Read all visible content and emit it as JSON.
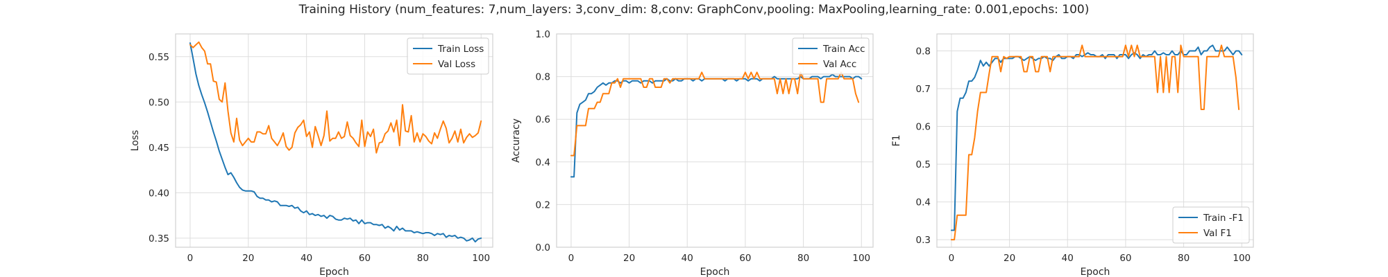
{
  "figure": {
    "suptitle": "Training History (num_features: 7,num_layers: 3,conv_dim: 8,conv: GraphConv,pooling: MaxPooling,learning_rate: 0.001,epochs: 100)"
  },
  "colors": {
    "train": "#1f77b4",
    "val": "#ff7f0e",
    "grid": "#dddddd",
    "axes_edge": "#d0d0d0",
    "background": "#ffffff"
  },
  "chart_data": [
    {
      "type": "line",
      "xlabel": "Epoch",
      "ylabel": "Loss",
      "xlim": [
        -5,
        104
      ],
      "ylim": [
        0.34,
        0.575
      ],
      "xticks": [
        0,
        20,
        40,
        60,
        80,
        100
      ],
      "yticks": [
        0.35,
        0.4,
        0.45,
        0.5,
        0.55
      ],
      "ytick_labels": [
        "0.35",
        "0.40",
        "0.45",
        "0.50",
        "0.55"
      ],
      "grid": true,
      "legend_position": "top-right",
      "series": [
        {
          "name": "Train Loss",
          "color": "#1f77b4",
          "x_start": 0,
          "values": [
            0.565,
            0.548,
            0.531,
            0.518,
            0.508,
            0.499,
            0.489,
            0.478,
            0.467,
            0.457,
            0.446,
            0.437,
            0.428,
            0.42,
            0.422,
            0.417,
            0.411,
            0.406,
            0.403,
            0.402,
            0.402,
            0.402,
            0.401,
            0.396,
            0.394,
            0.394,
            0.392,
            0.392,
            0.39,
            0.391,
            0.39,
            0.386,
            0.386,
            0.386,
            0.385,
            0.386,
            0.383,
            0.384,
            0.38,
            0.378,
            0.38,
            0.376,
            0.377,
            0.375,
            0.376,
            0.374,
            0.375,
            0.372,
            0.375,
            0.374,
            0.371,
            0.37,
            0.37,
            0.372,
            0.371,
            0.372,
            0.369,
            0.37,
            0.366,
            0.37,
            0.366,
            0.367,
            0.367,
            0.365,
            0.365,
            0.364,
            0.365,
            0.361,
            0.363,
            0.361,
            0.358,
            0.363,
            0.359,
            0.361,
            0.358,
            0.358,
            0.358,
            0.356,
            0.357,
            0.356,
            0.355,
            0.356,
            0.356,
            0.355,
            0.353,
            0.355,
            0.354,
            0.355,
            0.351,
            0.353,
            0.352,
            0.353,
            0.35,
            0.351,
            0.35,
            0.347,
            0.348,
            0.35,
            0.346,
            0.349,
            0.35
          ]
        },
        {
          "name": "Val Loss",
          "color": "#ff7f0e",
          "x_start": 0,
          "values": [
            0.563,
            0.56,
            0.563,
            0.566,
            0.56,
            0.556,
            0.542,
            0.542,
            0.523,
            0.522,
            0.503,
            0.5,
            0.521,
            0.49,
            0.466,
            0.456,
            0.482,
            0.458,
            0.452,
            0.456,
            0.46,
            0.456,
            0.456,
            0.467,
            0.467,
            0.465,
            0.465,
            0.474,
            0.46,
            0.456,
            0.452,
            0.458,
            0.466,
            0.451,
            0.447,
            0.45,
            0.466,
            0.472,
            0.475,
            0.48,
            0.462,
            0.467,
            0.45,
            0.473,
            0.463,
            0.452,
            0.463,
            0.49,
            0.457,
            0.46,
            0.46,
            0.467,
            0.46,
            0.462,
            0.478,
            0.463,
            0.46,
            0.455,
            0.451,
            0.48,
            0.451,
            0.467,
            0.462,
            0.47,
            0.444,
            0.455,
            0.456,
            0.465,
            0.468,
            0.477,
            0.467,
            0.48,
            0.452,
            0.497,
            0.468,
            0.467,
            0.485,
            0.456,
            0.466,
            0.456,
            0.465,
            0.462,
            0.457,
            0.454,
            0.466,
            0.46,
            0.47,
            0.479,
            0.471,
            0.455,
            0.46,
            0.468,
            0.456,
            0.47,
            0.455,
            0.461,
            0.465,
            0.461,
            0.463,
            0.466,
            0.479
          ]
        }
      ]
    },
    {
      "type": "line",
      "xlabel": "Epoch",
      "ylabel": "Accuracy",
      "xlim": [
        -5,
        104
      ],
      "ylim": [
        0.0,
        1.0
      ],
      "xticks": [
        0,
        20,
        40,
        60,
        80,
        100
      ],
      "yticks": [
        0.0,
        0.2,
        0.4,
        0.6,
        0.8,
        1.0
      ],
      "ytick_labels": [
        "0.0",
        "0.2",
        "0.4",
        "0.6",
        "0.8",
        "1.0"
      ],
      "grid": true,
      "legend_position": "top-right",
      "series": [
        {
          "name": "Train Acc",
          "color": "#1f77b4",
          "x_start": 0,
          "values": [
            0.33,
            0.33,
            0.63,
            0.67,
            0.68,
            0.69,
            0.72,
            0.72,
            0.73,
            0.75,
            0.76,
            0.77,
            0.76,
            0.77,
            0.77,
            0.78,
            0.78,
            0.77,
            0.78,
            0.78,
            0.77,
            0.78,
            0.78,
            0.78,
            0.77,
            0.78,
            0.78,
            0.78,
            0.77,
            0.78,
            0.78,
            0.78,
            0.78,
            0.79,
            0.78,
            0.78,
            0.79,
            0.78,
            0.78,
            0.79,
            0.79,
            0.79,
            0.78,
            0.79,
            0.79,
            0.78,
            0.79,
            0.79,
            0.79,
            0.79,
            0.79,
            0.79,
            0.79,
            0.78,
            0.79,
            0.79,
            0.79,
            0.78,
            0.79,
            0.79,
            0.79,
            0.78,
            0.79,
            0.79,
            0.79,
            0.78,
            0.79,
            0.79,
            0.79,
            0.79,
            0.8,
            0.79,
            0.79,
            0.79,
            0.79,
            0.79,
            0.79,
            0.79,
            0.79,
            0.8,
            0.79,
            0.79,
            0.79,
            0.8,
            0.8,
            0.8,
            0.79,
            0.8,
            0.8,
            0.8,
            0.81,
            0.8,
            0.8,
            0.8,
            0.8,
            0.8,
            0.8,
            0.79,
            0.8,
            0.8,
            0.79
          ]
        },
        {
          "name": "Val Acc",
          "color": "#ff7f0e",
          "x_start": 0,
          "values": [
            0.43,
            0.43,
            0.57,
            0.57,
            0.57,
            0.57,
            0.65,
            0.65,
            0.65,
            0.68,
            0.68,
            0.72,
            0.72,
            0.72,
            0.77,
            0.77,
            0.79,
            0.75,
            0.79,
            0.79,
            0.79,
            0.79,
            0.79,
            0.79,
            0.79,
            0.75,
            0.75,
            0.79,
            0.79,
            0.75,
            0.75,
            0.75,
            0.79,
            0.79,
            0.77,
            0.79,
            0.79,
            0.79,
            0.79,
            0.79,
            0.79,
            0.79,
            0.79,
            0.79,
            0.79,
            0.82,
            0.79,
            0.79,
            0.79,
            0.79,
            0.79,
            0.79,
            0.79,
            0.79,
            0.79,
            0.79,
            0.79,
            0.79,
            0.79,
            0.79,
            0.82,
            0.79,
            0.82,
            0.79,
            0.82,
            0.79,
            0.79,
            0.79,
            0.79,
            0.79,
            0.79,
            0.72,
            0.79,
            0.72,
            0.79,
            0.72,
            0.79,
            0.79,
            0.72,
            0.82,
            0.79,
            0.79,
            0.79,
            0.79,
            0.79,
            0.79,
            0.68,
            0.68,
            0.79,
            0.79,
            0.79,
            0.79,
            0.79,
            0.82,
            0.79,
            0.79,
            0.79,
            0.79,
            0.72,
            0.68
          ]
        }
      ]
    },
    {
      "type": "line",
      "xlabel": "Epoch",
      "ylabel": "F1",
      "xlim": [
        -5,
        104
      ],
      "ylim": [
        0.28,
        0.845
      ],
      "xticks": [
        0,
        20,
        40,
        60,
        80,
        100
      ],
      "yticks": [
        0.3,
        0.4,
        0.5,
        0.6,
        0.7,
        0.8
      ],
      "ytick_labels": [
        "0.3",
        "0.4",
        "0.5",
        "0.6",
        "0.7",
        "0.8"
      ],
      "grid": true,
      "legend_position": "bottom-right",
      "series": [
        {
          "name": "Train -F1",
          "color": "#1f77b4",
          "x_start": 0,
          "values": [
            0.325,
            0.325,
            0.64,
            0.675,
            0.675,
            0.69,
            0.72,
            0.72,
            0.73,
            0.75,
            0.775,
            0.76,
            0.77,
            0.76,
            0.77,
            0.78,
            0.78,
            0.77,
            0.78,
            0.78,
            0.78,
            0.78,
            0.785,
            0.785,
            0.78,
            0.775,
            0.78,
            0.785,
            0.78,
            0.775,
            0.78,
            0.78,
            0.785,
            0.78,
            0.78,
            0.775,
            0.785,
            0.79,
            0.78,
            0.78,
            0.785,
            0.785,
            0.78,
            0.79,
            0.79,
            0.785,
            0.79,
            0.795,
            0.79,
            0.79,
            0.785,
            0.785,
            0.79,
            0.78,
            0.79,
            0.79,
            0.79,
            0.78,
            0.79,
            0.79,
            0.79,
            0.78,
            0.79,
            0.795,
            0.79,
            0.78,
            0.79,
            0.785,
            0.79,
            0.79,
            0.8,
            0.79,
            0.79,
            0.795,
            0.79,
            0.79,
            0.8,
            0.79,
            0.79,
            0.8,
            0.79,
            0.79,
            0.8,
            0.8,
            0.8,
            0.81,
            0.79,
            0.8,
            0.8,
            0.81,
            0.815,
            0.8,
            0.8,
            0.8,
            0.8,
            0.81,
            0.8,
            0.79,
            0.8,
            0.8,
            0.79
          ]
        },
        {
          "name": "Val F1",
          "color": "#ff7f0e",
          "x_start": 0,
          "values": [
            0.3,
            0.3,
            0.365,
            0.365,
            0.365,
            0.365,
            0.525,
            0.525,
            0.57,
            0.64,
            0.69,
            0.69,
            0.69,
            0.74,
            0.785,
            0.785,
            0.785,
            0.745,
            0.785,
            0.78,
            0.785,
            0.785,
            0.785,
            0.785,
            0.785,
            0.745,
            0.745,
            0.785,
            0.785,
            0.745,
            0.745,
            0.785,
            0.785,
            0.785,
            0.745,
            0.785,
            0.785,
            0.785,
            0.785,
            0.785,
            0.785,
            0.785,
            0.785,
            0.785,
            0.785,
            0.815,
            0.785,
            0.785,
            0.785,
            0.785,
            0.785,
            0.785,
            0.785,
            0.785,
            0.785,
            0.785,
            0.785,
            0.785,
            0.785,
            0.785,
            0.815,
            0.785,
            0.815,
            0.785,
            0.815,
            0.785,
            0.785,
            0.785,
            0.785,
            0.785,
            0.785,
            0.69,
            0.785,
            0.69,
            0.785,
            0.69,
            0.785,
            0.785,
            0.69,
            0.815,
            0.785,
            0.785,
            0.785,
            0.785,
            0.785,
            0.785,
            0.645,
            0.645,
            0.785,
            0.785,
            0.785,
            0.785,
            0.785,
            0.815,
            0.785,
            0.785,
            0.785,
            0.785,
            0.73,
            0.645
          ]
        }
      ]
    }
  ]
}
